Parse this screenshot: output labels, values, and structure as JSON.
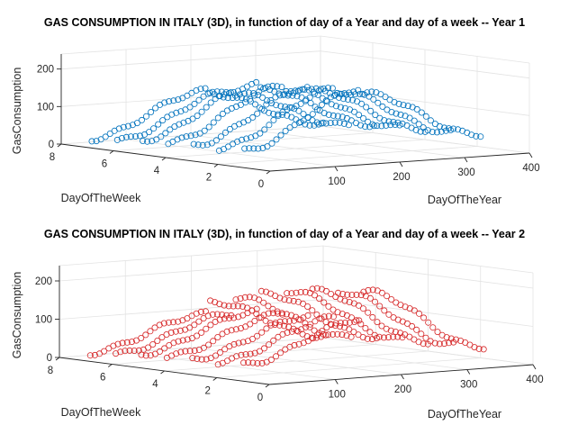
{
  "chart_data": [
    {
      "type": "scatter3d",
      "title": "GAS CONSUMPTION IN ITALY (3D), in function of day of a Year and day of a week -- Year 1",
      "xlabel": "DayOfTheYear",
      "ylabel": "DayOfTheWeek",
      "zlabel": "GasConsumption",
      "xlim": [
        0,
        400
      ],
      "ylim": [
        0,
        8
      ],
      "zlim": [
        0,
        240
      ],
      "xticks": [
        100,
        200,
        300,
        400
      ],
      "yticks": [
        0,
        2,
        4,
        6,
        8
      ],
      "zticks": [
        0,
        100,
        200
      ],
      "marker": "circle-open",
      "color": "#0072BD",
      "grid": true,
      "series": [
        {
          "name": "",
          "x_range": [
            1,
            365
          ],
          "step": 7,
          "y_by_weekday": [
            1,
            2,
            3,
            4,
            5,
            6,
            7
          ],
          "z_winter": [
            190,
            180,
            175,
            170,
            165,
            140,
            130
          ],
          "z_summer": [
            45,
            42,
            40,
            38,
            35,
            25,
            20
          ],
          "z_end": [
            175,
            170,
            165,
            160,
            150,
            130,
            120
          ]
        }
      ]
    },
    {
      "type": "scatter3d",
      "title": "GAS CONSUMPTION IN ITALY (3D), in function of day of a Year and day of a week -- Year 2",
      "xlabel": "DayOfTheYear",
      "ylabel": "DayOfTheWeek",
      "zlabel": "GasConsumption",
      "xlim": [
        0,
        400
      ],
      "ylim": [
        0,
        8
      ],
      "zlim": [
        0,
        240
      ],
      "xticks": [
        100,
        200,
        300,
        400
      ],
      "yticks": [
        0,
        2,
        4,
        6,
        8
      ],
      "zticks": [
        0,
        100,
        200
      ],
      "marker": "circle-open",
      "color": "#D62728",
      "grid": true,
      "series": [
        {
          "name": "",
          "x_range": [
            1,
            365
          ],
          "step": 7,
          "y_by_weekday": [
            1,
            2,
            3,
            4,
            5,
            6,
            7
          ],
          "z_winter": [
            140,
            135,
            130,
            128,
            125,
            110,
            100
          ],
          "z_summer": [
            42,
            40,
            38,
            36,
            33,
            24,
            18
          ],
          "z_end": [
            210,
            200,
            195,
            185,
            170,
            150,
            130
          ]
        }
      ]
    }
  ]
}
